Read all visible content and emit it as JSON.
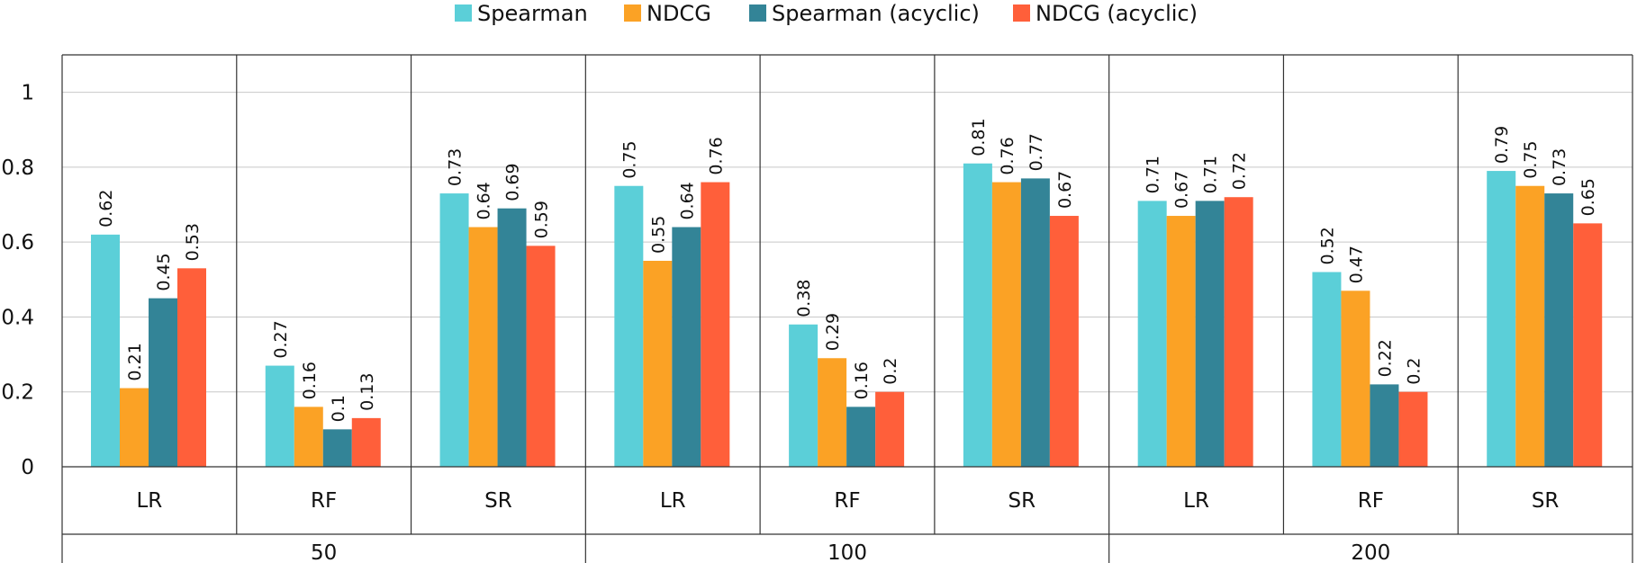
{
  "chart_data": {
    "type": "bar",
    "title": "",
    "xlabel": "",
    "ylabel": "",
    "ylim": [
      0,
      1.1
    ],
    "yticks": [
      0,
      0.2,
      0.4,
      0.6,
      0.8,
      1
    ],
    "ytick_labels": [
      "0",
      "0.2",
      "0.4",
      "0.6",
      "0.8",
      "1"
    ],
    "grid": true,
    "legend_position": "top-center",
    "groups": [
      {
        "label": "50",
        "categories": [
          "LR",
          "RF",
          "SR"
        ]
      },
      {
        "label": "100",
        "categories": [
          "LR",
          "RF",
          "SR"
        ]
      },
      {
        "label": "200",
        "categories": [
          "LR",
          "RF",
          "SR"
        ]
      }
    ],
    "series": [
      {
        "name": "Spearman",
        "color": "#5bcfd8",
        "values": [
          0.62,
          0.27,
          0.73,
          0.75,
          0.38,
          0.81,
          0.71,
          0.52,
          0.79
        ],
        "labels": [
          "0.62",
          "0.27",
          "0.73",
          "0.75",
          "0.38",
          "0.81",
          "0.71",
          "0.52",
          "0.79"
        ]
      },
      {
        "name": "NDCG",
        "color": "#fba225",
        "values": [
          0.21,
          0.16,
          0.64,
          0.55,
          0.29,
          0.76,
          0.67,
          0.47,
          0.75
        ],
        "labels": [
          "0.21",
          "0.16",
          "0.64",
          "0.55",
          "0.29",
          "0.76",
          "0.67",
          "0.47",
          "0.75"
        ]
      },
      {
        "name": "Spearman (acyclic)",
        "color": "#338497",
        "values": [
          0.45,
          0.1,
          0.69,
          0.64,
          0.16,
          0.77,
          0.71,
          0.22,
          0.73
        ],
        "labels": [
          "0.45",
          "0.1",
          "0.69",
          "0.64",
          "0.16",
          "0.77",
          "0.71",
          "0.22",
          "0.73"
        ]
      },
      {
        "name": "NDCG (acyclic)",
        "color": "#ff5f3a",
        "values": [
          0.53,
          0.13,
          0.59,
          0.76,
          0.2,
          0.67,
          0.72,
          0.2,
          0.65
        ],
        "labels": [
          "0.53",
          "0.13",
          "0.59",
          "0.76",
          "0.2",
          "0.67",
          "0.72",
          "0.2",
          "0.65"
        ]
      }
    ]
  }
}
